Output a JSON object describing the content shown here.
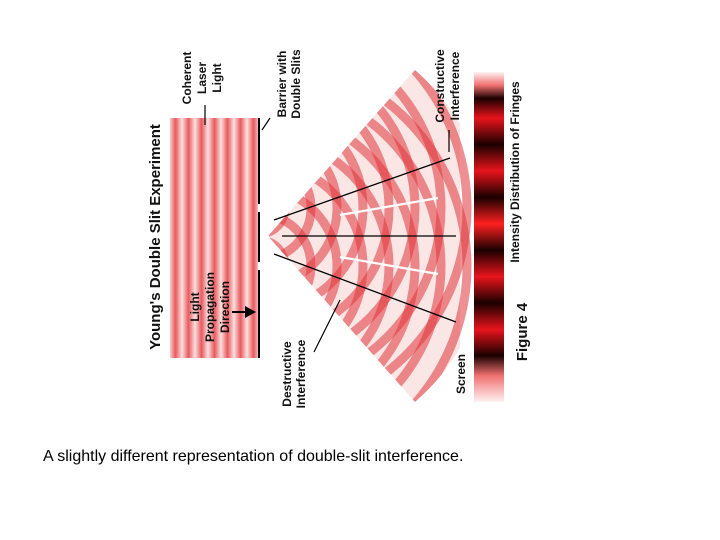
{
  "diagram": {
    "title": "Young's Double Slit Experiment",
    "labels": {
      "coherent": [
        "Coherent",
        "Laser",
        "Light"
      ],
      "barrier": [
        "Barrier with",
        "Double Slits"
      ],
      "constructive": [
        "Constructive",
        "Interference"
      ],
      "intensity": "Intensity Distribution of Fringes",
      "propagation": [
        "Light",
        "Propagation",
        "Direction"
      ],
      "destructive": [
        "Destructive",
        "Interference"
      ],
      "screen": "Screen",
      "figure": "Figure 4"
    },
    "colors": {
      "wave_dark": "#e0343a",
      "wave_light": "#fbe3e3",
      "fringe_bright": "#e8141c",
      "fringe_dark": "#1a0000",
      "line": "#000000"
    }
  },
  "caption": "A slightly different representation of double-slit interference."
}
